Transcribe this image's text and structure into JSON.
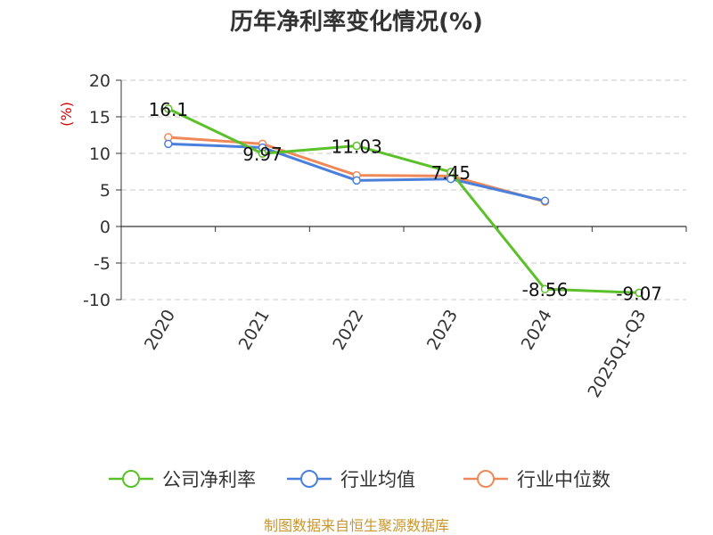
{
  "chart_data": {
    "type": "line",
    "title": "历年净利率变化情况(%)",
    "ylabel": "(%)",
    "categories": [
      "2020",
      "2021",
      "2022",
      "2023",
      "2024",
      "2025Q1-Q3"
    ],
    "ylim": [
      -10,
      20
    ],
    "yticks": [
      20,
      15,
      10,
      5,
      0,
      -5,
      -10
    ],
    "grid": true,
    "legend_position": "bottom",
    "series": [
      {
        "name": "公司净利率",
        "color": "#5bc12a",
        "values": [
          16.1,
          9.97,
          11.03,
          7.45,
          -8.56,
          -9.07
        ],
        "labels": [
          "16.1",
          "9.97",
          "11.03",
          "7.45",
          "-8.56",
          "-9.07"
        ]
      },
      {
        "name": "行业均值",
        "color": "#4a7fdc",
        "values": [
          11.3,
          10.8,
          6.3,
          6.5,
          3.5,
          null
        ]
      },
      {
        "name": "行业中位数",
        "color": "#f0895a",
        "values": [
          12.2,
          11.3,
          7.0,
          6.9,
          3.4,
          null
        ]
      }
    ]
  },
  "footer": {
    "source": "制图数据来自恒生聚源数据库"
  }
}
